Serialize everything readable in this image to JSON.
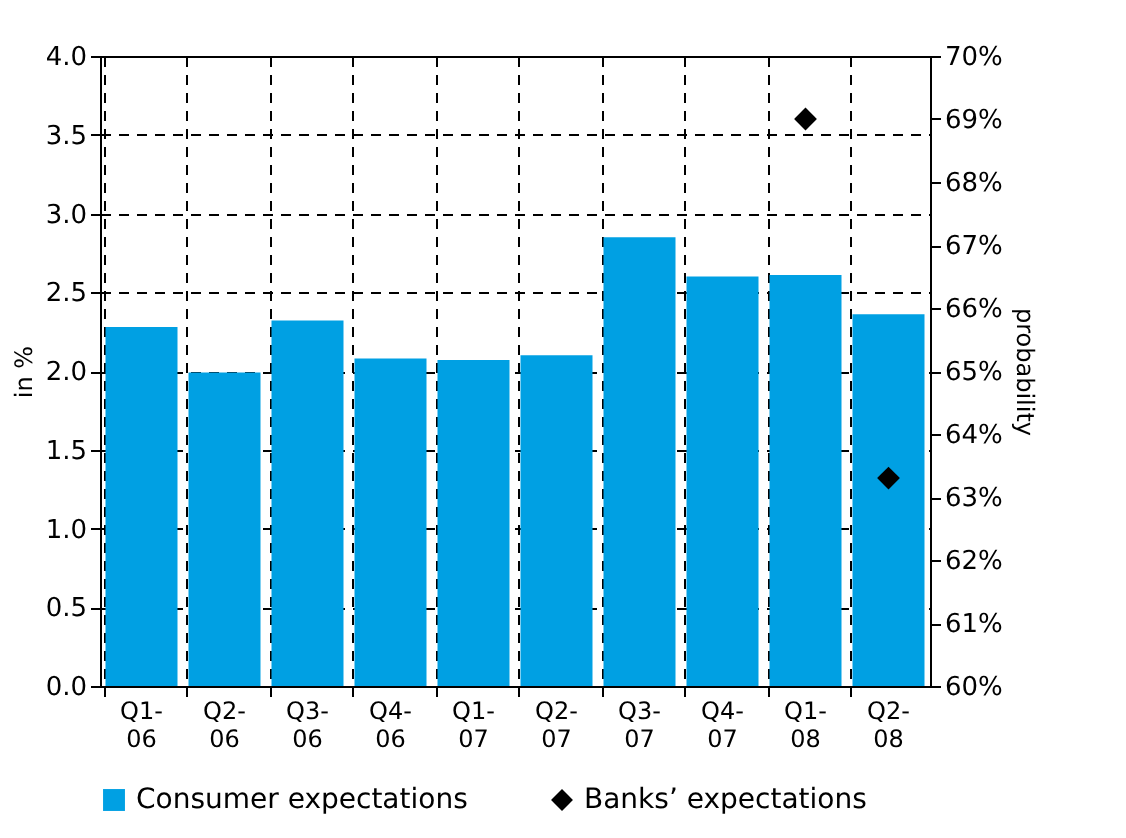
{
  "chart_data": {
    "type": "bar",
    "ylabel": "in %",
    "y2label": "probability",
    "categories": [
      "Q1-06",
      "Q2-06",
      "Q3-06",
      "Q4-06",
      "Q1-07",
      "Q2-07",
      "Q3-07",
      "Q4-07",
      "Q1-08",
      "Q2-08"
    ],
    "series": [
      {
        "name": "Consumer expectations",
        "color": "#00a0e3",
        "values": [
          2.28,
          1.99,
          2.32,
          2.08,
          2.07,
          2.1,
          2.85,
          2.6,
          2.61,
          2.36
        ]
      },
      {
        "name": "Banks’ expectations",
        "type": "scatter",
        "axis": "y2",
        "marker": "diamond",
        "color": "#000000",
        "values": [
          null,
          null,
          null,
          null,
          null,
          null,
          null,
          null,
          69.0,
          63.3
        ]
      }
    ],
    "ylim": [
      0,
      4
    ],
    "yticks": [
      {
        "value": 0,
        "label": "0.0"
      },
      0.5,
      {
        "value": 1,
        "label": "1.0"
      },
      1.5,
      {
        "value": 2,
        "label": "2.0"
      },
      2.5,
      {
        "value": 3,
        "label": "3.0"
      },
      3.5,
      {
        "value": 4,
        "label": "4.0"
      }
    ],
    "y2lim": [
      60,
      70
    ],
    "y2ticks": [
      {
        "value": 60,
        "label": "60%"
      },
      {
        "value": 61,
        "label": "61%"
      },
      {
        "value": 62,
        "label": "62%"
      },
      {
        "value": 63,
        "label": "63%"
      },
      {
        "value": 64,
        "label": "64%"
      },
      {
        "value": 65,
        "label": "65%"
      },
      {
        "value": 66,
        "label": "66%"
      },
      {
        "value": 67,
        "label": "67%"
      },
      {
        "value": 68,
        "label": "68%"
      },
      {
        "value": 69,
        "label": "69%"
      },
      {
        "value": 70,
        "label": "70%"
      }
    ],
    "grid": true,
    "legend": "bottom"
  }
}
